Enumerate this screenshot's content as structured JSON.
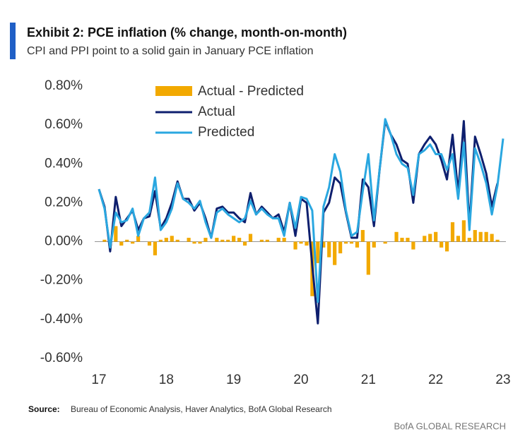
{
  "chart_data": {
    "type": "bar_line",
    "title": "Exhibit 2: PCE inflation (% change, month-on-month)",
    "subtitle": "CPI and PPI point to a solid gain in January PCE inflation",
    "source_label": "Source:",
    "source": "Bureau of Economic Analysis, Haver Analytics, BofA Global Research",
    "footer": "BofA GLOBAL RESEARCH",
    "categories": [
      "17",
      null,
      null,
      null,
      null,
      null,
      null,
      null,
      null,
      null,
      null,
      null,
      "18",
      null,
      null,
      null,
      null,
      null,
      null,
      null,
      null,
      null,
      null,
      null,
      "19",
      null,
      null,
      null,
      null,
      null,
      null,
      null,
      null,
      null,
      null,
      null,
      "20",
      null,
      null,
      null,
      null,
      null,
      null,
      null,
      null,
      null,
      null,
      null,
      "21",
      null,
      null,
      null,
      null,
      null,
      null,
      null,
      null,
      null,
      null,
      null,
      "22",
      null,
      null,
      null,
      null,
      null,
      null,
      null,
      null,
      null,
      null,
      null,
      "23"
    ],
    "ylim": [
      -0.6,
      0.8
    ],
    "yticks": [
      {
        "value": 0.8,
        "label": "0.80%"
      },
      {
        "value": 0.6,
        "label": "0.60%"
      },
      {
        "value": 0.4,
        "label": "0.40%"
      },
      {
        "value": 0.2,
        "label": "0.20%"
      },
      {
        "value": 0,
        "label": "0.00%"
      },
      {
        "value": -0.2,
        "label": "-0.20%"
      },
      {
        "value": -0.4,
        "label": "-0.40%"
      },
      {
        "value": -0.6,
        "label": "-0.60%"
      }
    ],
    "legend": "upper left",
    "series": [
      {
        "name": "Actual - Predicted",
        "type": "bar",
        "color": "#f2a900",
        "values": [
          0,
          0.01,
          -0.02,
          0.08,
          -0.02,
          0.01,
          -0.01,
          0.03,
          0,
          -0.02,
          -0.07,
          0.01,
          0.02,
          0.03,
          0.01,
          0,
          0.02,
          -0.01,
          -0.01,
          0.02,
          0,
          0.02,
          0.01,
          0.01,
          0.03,
          0.02,
          -0.02,
          0.04,
          0,
          0.01,
          0.01,
          0,
          0.02,
          0.02,
          0,
          -0.04,
          -0.01,
          -0.02,
          -0.28,
          -0.11,
          -0.03,
          -0.08,
          -0.12,
          -0.06,
          -0.01,
          -0.01,
          -0.03,
          0.06,
          -0.17,
          -0.03,
          0,
          -0.01,
          0,
          0.05,
          0.02,
          0.02,
          -0.04,
          0,
          0.03,
          0.04,
          0.05,
          -0.03,
          -0.05,
          0.1,
          0.03,
          0.11,
          0.02,
          0.06,
          0.05,
          0.05,
          0.04,
          0.01,
          null
        ]
      },
      {
        "name": "Actual",
        "type": "line",
        "color": "#0e1f6e",
        "values": [
          0.27,
          0.18,
          -0.05,
          0.23,
          0.08,
          0.12,
          0.16,
          0.06,
          0.12,
          0.13,
          0.26,
          0.07,
          0.12,
          0.2,
          0.31,
          0.22,
          0.22,
          0.16,
          0.2,
          0.12,
          0.02,
          0.17,
          0.18,
          0.15,
          0.15,
          0.12,
          0.1,
          0.25,
          0.14,
          0.18,
          0.15,
          0.12,
          0.14,
          0.05,
          0.2,
          0.03,
          0.22,
          0.2,
          -0.12,
          -0.42,
          0.15,
          0.2,
          0.33,
          0.3,
          0.15,
          0.02,
          0.02,
          0.32,
          0.28,
          0.08,
          0.37,
          0.62,
          0.55,
          0.5,
          0.42,
          0.4,
          0.2,
          0.45,
          0.5,
          0.54,
          0.5,
          0.42,
          0.32,
          0.55,
          0.25,
          0.62,
          0.08,
          0.54,
          0.45,
          0.35,
          0.18,
          0.3,
          null
        ]
      },
      {
        "name": "Predicted",
        "type": "line",
        "color": "#2aa7e0",
        "values": [
          0.27,
          0.17,
          -0.03,
          0.15,
          0.1,
          0.11,
          0.17,
          0.03,
          0.12,
          0.15,
          0.33,
          0.06,
          0.1,
          0.17,
          0.3,
          0.22,
          0.2,
          0.17,
          0.21,
          0.1,
          0.02,
          0.15,
          0.17,
          0.14,
          0.12,
          0.1,
          0.12,
          0.21,
          0.14,
          0.17,
          0.14,
          0.12,
          0.12,
          0.03,
          0.2,
          0.07,
          0.23,
          0.22,
          0.16,
          -0.31,
          0.18,
          0.28,
          0.45,
          0.36,
          0.16,
          0.03,
          0.05,
          0.26,
          0.45,
          0.11,
          0.37,
          0.63,
          0.55,
          0.45,
          0.4,
          0.38,
          0.24,
          0.45,
          0.47,
          0.5,
          0.45,
          0.45,
          0.37,
          0.45,
          0.22,
          0.51,
          0.06,
          0.48,
          0.4,
          0.3,
          0.14,
          0.29,
          0.53
        ]
      }
    ]
  }
}
